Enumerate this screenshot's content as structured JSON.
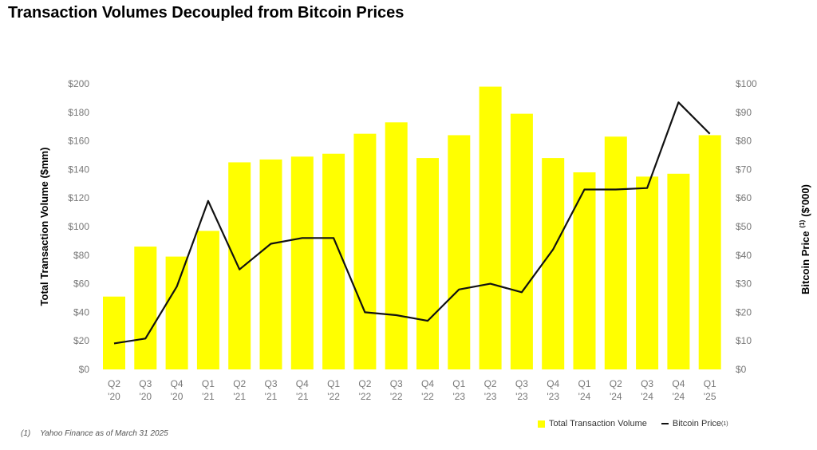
{
  "title": "Transaction Volumes Decoupled from Bitcoin Prices",
  "footnote": {
    "marker": "(1)",
    "text": "Yahoo Finance as of March 31 2025"
  },
  "legend": {
    "bar_label": "Total Transaction Volume",
    "line_label": "Bitcoin Price",
    "line_sup": "(1)"
  },
  "colors": {
    "bar": "#ffff00",
    "line": "#111111",
    "tick": "#777777"
  },
  "chart_data": {
    "type": "bar",
    "categories": [
      [
        "Q2",
        "'20"
      ],
      [
        "Q3",
        "'20"
      ],
      [
        "Q4",
        "'20"
      ],
      [
        "Q1",
        "'21"
      ],
      [
        "Q2",
        "'21"
      ],
      [
        "Q3",
        "'21"
      ],
      [
        "Q4",
        "'21"
      ],
      [
        "Q1",
        "'22"
      ],
      [
        "Q2",
        "'22"
      ],
      [
        "Q3",
        "'22"
      ],
      [
        "Q4",
        "'22"
      ],
      [
        "Q1",
        "'23"
      ],
      [
        "Q2",
        "'23"
      ],
      [
        "Q3",
        "'23"
      ],
      [
        "Q4",
        "'23"
      ],
      [
        "Q1",
        "'24"
      ],
      [
        "Q2",
        "'24"
      ],
      [
        "Q3",
        "'24"
      ],
      [
        "Q4",
        "'24"
      ],
      [
        "Q1",
        "'25"
      ]
    ],
    "series": [
      {
        "name": "Total Transaction Volume",
        "type": "bar",
        "axis": "left",
        "values": [
          51,
          86,
          79,
          97,
          145,
          147,
          149,
          151,
          165,
          173,
          148,
          164,
          198,
          179,
          148,
          138,
          163,
          135,
          137,
          164
        ]
      },
      {
        "name": "Bitcoin Price",
        "type": "line",
        "axis": "right",
        "values": [
          9.1,
          10.8,
          29,
          59,
          35,
          44,
          46,
          46,
          20,
          19,
          17,
          28,
          30,
          27,
          42,
          63,
          63,
          63.5,
          93.5,
          82.5
        ]
      }
    ],
    "y_left": {
      "label": "Total Transaction Volume ($mm)",
      "ticks": [
        "$0",
        "$20",
        "$40",
        "$60",
        "$80",
        "$100",
        "$120",
        "$140",
        "$160",
        "$180",
        "$200"
      ],
      "ylim": [
        0,
        200
      ]
    },
    "y_right": {
      "label": "Bitcoin Price",
      "label_sup": "(1)",
      "label_unit": "($'000)",
      "ticks": [
        "$0",
        "$10",
        "$20",
        "$30",
        "$40",
        "$50",
        "$60",
        "$70",
        "$80",
        "$90",
        "$100"
      ],
      "ylim": [
        0,
        100
      ]
    },
    "grid": false,
    "legend_position": "bottom-right"
  }
}
